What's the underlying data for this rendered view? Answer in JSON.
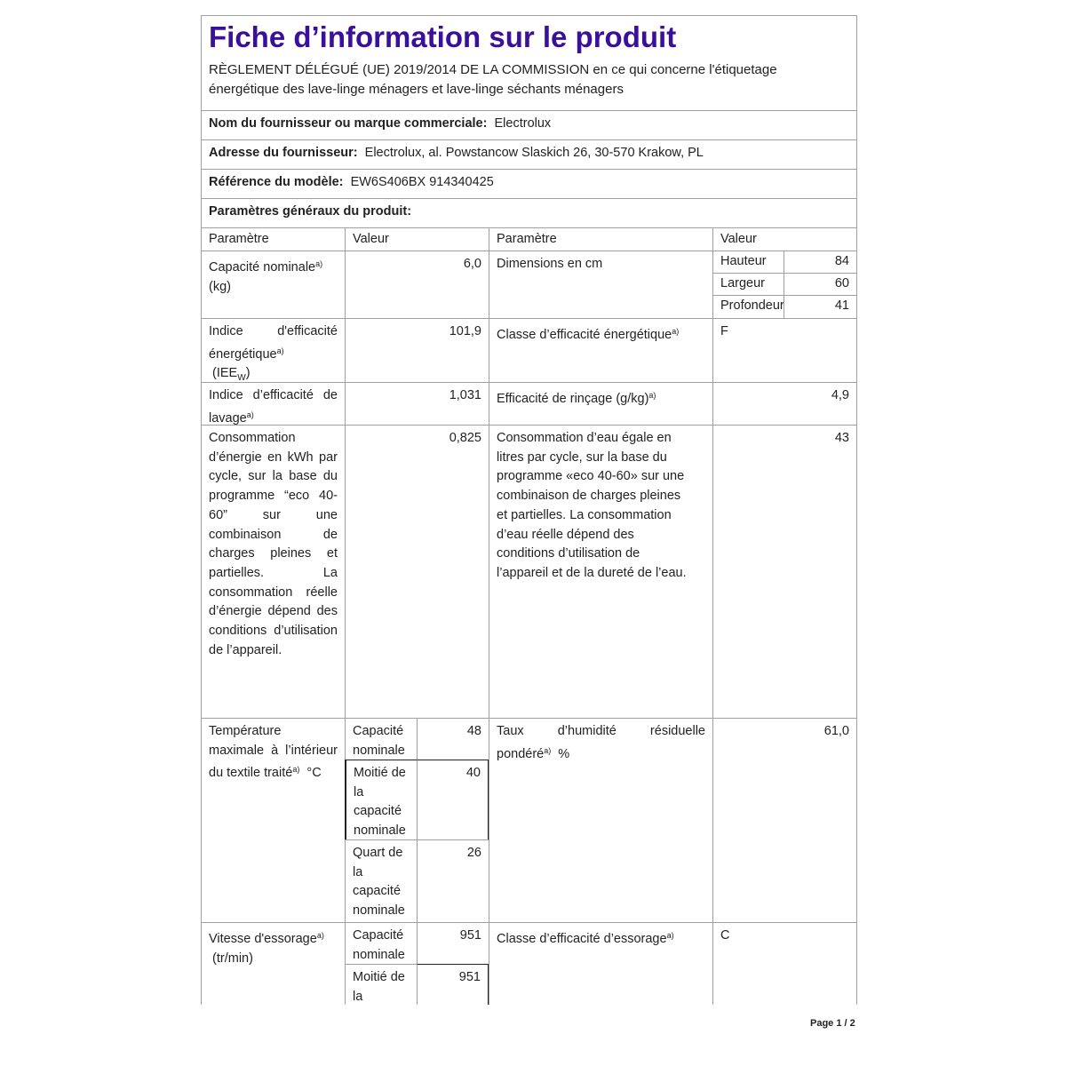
{
  "header": {
    "title": "Fiche d’information sur le produit",
    "regulation": "RÈGLEMENT DÉLÉGUÉ (UE) 2019/2014 DE LA COMMISSION en ce qui concerne l'étiquetage énergétique des lave-linge ménagers et lave-linge séchants ménagers",
    "supplier_label": "Nom du fournisseur ou marque commerciale:",
    "supplier_value": "Electrolux",
    "address_label": "Adresse du fournisseur:",
    "address_value": "Electrolux, al. Powstancow Slaskich 26, 30-570 Krakow, PL",
    "model_label": "Référence du modèle:",
    "model_value": "EW6S406BX 914340425",
    "general_label": "Paramètres généraux du produit:"
  },
  "table": {
    "col_param": "Paramètre",
    "col_value": "Valeur",
    "capacity_label": "Capacité nominale",
    "capacity_unit": "(kg)",
    "capacity_value": "6,0",
    "dimensions_label": "Dimensions en cm",
    "height_label": "Hauteur",
    "height_value": "84",
    "width_label": "Largeur",
    "width_value": "60",
    "depth_label": "Profondeur",
    "depth_value": "41",
    "eei_label": "Indice d'efficacité énergétique",
    "eei_unit": "(IEE",
    "eei_sub": "W",
    "eei_close": ")",
    "eei_value": "101,9",
    "energy_class_label": "Classe d’efficacité énergétique",
    "energy_class_value": "F",
    "wash_label": "Indice d’efficacité de lavage",
    "wash_value": "1,031",
    "rinse_label": "Efficacité de rinçage (g/kg)",
    "rinse_value": "4,9",
    "energy_cons_label": "Consommation d’énergie en kWh par cycle, sur la base du programme “eco 40-60” sur une combinaison de charges pleines et partielles. La consommation réelle d’énergie dépend des conditions d’utilisation de l’appareil.",
    "energy_cons_value": "0,825",
    "water_cons_label": "Consommation d’eau égale en litres par cycle, sur la base du programme «eco 40-60» sur une combinaison de charges pleines et partielles. La consommation d’eau réelle dépend des conditions d’utilisation de l’appareil et de la dureté de l’eau.",
    "water_cons_value": "43",
    "temp_label": "Température maximale à l’intérieur du textile traité",
    "temp_unit": "°C",
    "full_cap": "Capacité nominale",
    "half_cap": "Moitié de la capacité nominale",
    "quarter_cap": "Quart de la capacité nominale",
    "temp_full": "48",
    "temp_half": "40",
    "temp_quarter": "26",
    "humidity_label": "Taux d’humidité résiduelle pondéré",
    "humidity_unit": "%",
    "humidity_value": "61,0",
    "spin_label": "Vitesse d'essorage",
    "spin_unit": "(tr/min)",
    "spin_full": "951",
    "spin_half": "951",
    "half_cap_partial": "Moitié de la",
    "spin_class_label": "Classe d’efficacité d’essorage",
    "spin_class_value": "C",
    "footnote_mark": "a)"
  },
  "footer": {
    "page": "Page 1 / 2"
  }
}
